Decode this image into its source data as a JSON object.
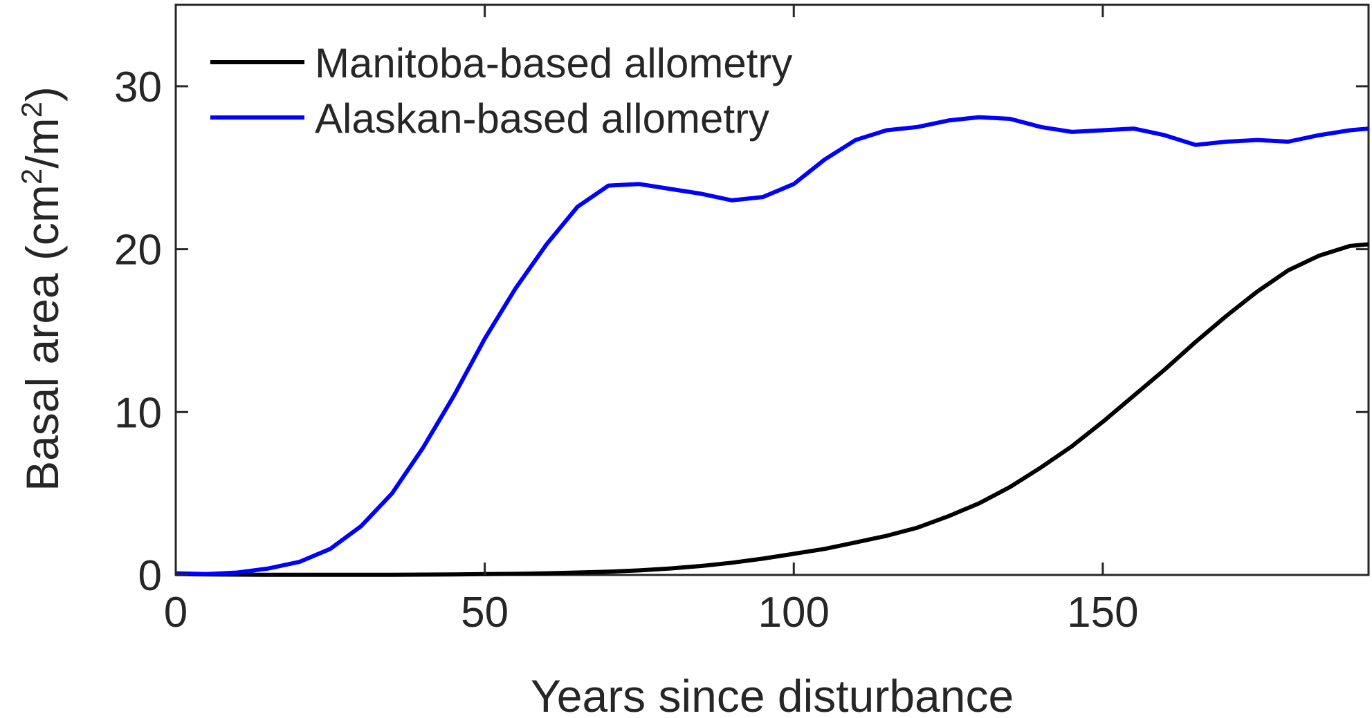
{
  "chart_data": {
    "type": "line",
    "xlabel": "Years since disturbance",
    "ylabel": {
      "prefix": "Basal area (cm",
      "sup1": "2",
      "middle": "/m",
      "sup2": "2",
      "suffix": ")"
    },
    "xlim": [
      0,
      193
    ],
    "ylim": [
      0,
      35
    ],
    "xticks": [
      0,
      50,
      100,
      150
    ],
    "yticks": [
      0,
      10,
      20,
      30
    ],
    "grid": false,
    "legend_position": "top-left",
    "series": [
      {
        "name": "Manitoba-based allometry",
        "color": "#000000",
        "x": [
          0,
          5,
          10,
          15,
          20,
          25,
          30,
          35,
          40,
          45,
          50,
          55,
          60,
          65,
          70,
          75,
          80,
          85,
          90,
          95,
          100,
          105,
          110,
          115,
          120,
          125,
          130,
          135,
          140,
          145,
          150,
          155,
          160,
          165,
          170,
          175,
          180,
          185,
          190,
          193
        ],
        "y": [
          0.05,
          0.03,
          0.02,
          0.01,
          0.01,
          0.01,
          0.01,
          0.01,
          0.02,
          0.03,
          0.05,
          0.07,
          0.1,
          0.15,
          0.2,
          0.28,
          0.4,
          0.55,
          0.75,
          1.0,
          1.3,
          1.6,
          2.0,
          2.4,
          2.9,
          3.6,
          4.4,
          5.4,
          6.6,
          7.9,
          9.4,
          11.0,
          12.6,
          14.3,
          15.9,
          17.4,
          18.7,
          19.6,
          20.2,
          20.3
        ]
      },
      {
        "name": "Alaskan-based allometry",
        "color": "#0000ff",
        "x": [
          0,
          5,
          10,
          15,
          20,
          25,
          30,
          35,
          40,
          45,
          50,
          55,
          60,
          65,
          70,
          75,
          80,
          85,
          90,
          95,
          100,
          105,
          110,
          115,
          120,
          125,
          130,
          135,
          140,
          145,
          150,
          155,
          160,
          165,
          170,
          175,
          180,
          185,
          190,
          193
        ],
        "y": [
          0.1,
          0.05,
          0.15,
          0.4,
          0.8,
          1.6,
          3.0,
          5.0,
          7.8,
          11.0,
          14.5,
          17.6,
          20.3,
          22.6,
          23.9,
          24.0,
          23.7,
          23.4,
          23.0,
          23.2,
          24.0,
          25.5,
          26.7,
          27.3,
          27.5,
          27.9,
          28.1,
          28.0,
          27.5,
          27.2,
          27.3,
          27.4,
          27.0,
          26.4,
          26.6,
          26.7,
          26.6,
          27.0,
          27.3,
          27.4
        ]
      }
    ]
  }
}
